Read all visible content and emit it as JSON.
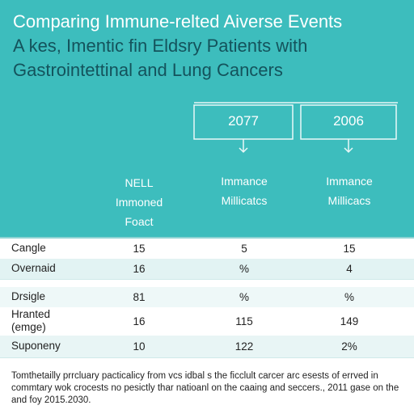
{
  "header": {
    "title_lines": [
      "Comparing Immune-relted Aiverse Events",
      "A kes, Imentic fin Eldsry Patients with",
      "Gastrointettinal and Lung Cancers"
    ]
  },
  "columns": [
    {
      "year": null,
      "label_lines": [
        "NELL",
        "Immoned",
        "Foact"
      ]
    },
    {
      "year": "2077",
      "label_lines": [
        "Immance",
        "Millicatcs"
      ]
    },
    {
      "year": "2006",
      "label_lines": [
        "Immance",
        "Millicacs"
      ]
    }
  ],
  "table": {
    "rows": [
      {
        "label_lines": [
          "Cangle"
        ],
        "cells": [
          "15",
          "5",
          "15"
        ]
      },
      {
        "label_lines": [
          "Overnaid"
        ],
        "cells": [
          "16",
          "%",
          "4"
        ]
      },
      {
        "label_lines": [
          "Drsigle"
        ],
        "cells": [
          "81",
          "%",
          "%"
        ]
      },
      {
        "label_lines": [
          "Hranted",
          "(emge)"
        ],
        "cells": [
          "16",
          "115",
          "149"
        ]
      },
      {
        "label_lines": [
          "Suponeny"
        ],
        "cells": [
          "10",
          "122",
          "2%"
        ]
      }
    ]
  },
  "footer": {
    "text": "Tomthetailly prrcluary pacticalicy from vcs idbal s the ficclult carcer arc esests of errved in commtary wok crocests no pesictly thar natioanl on the caaing and seccers., 2011 gase on the and foy 2015.2030."
  }
}
